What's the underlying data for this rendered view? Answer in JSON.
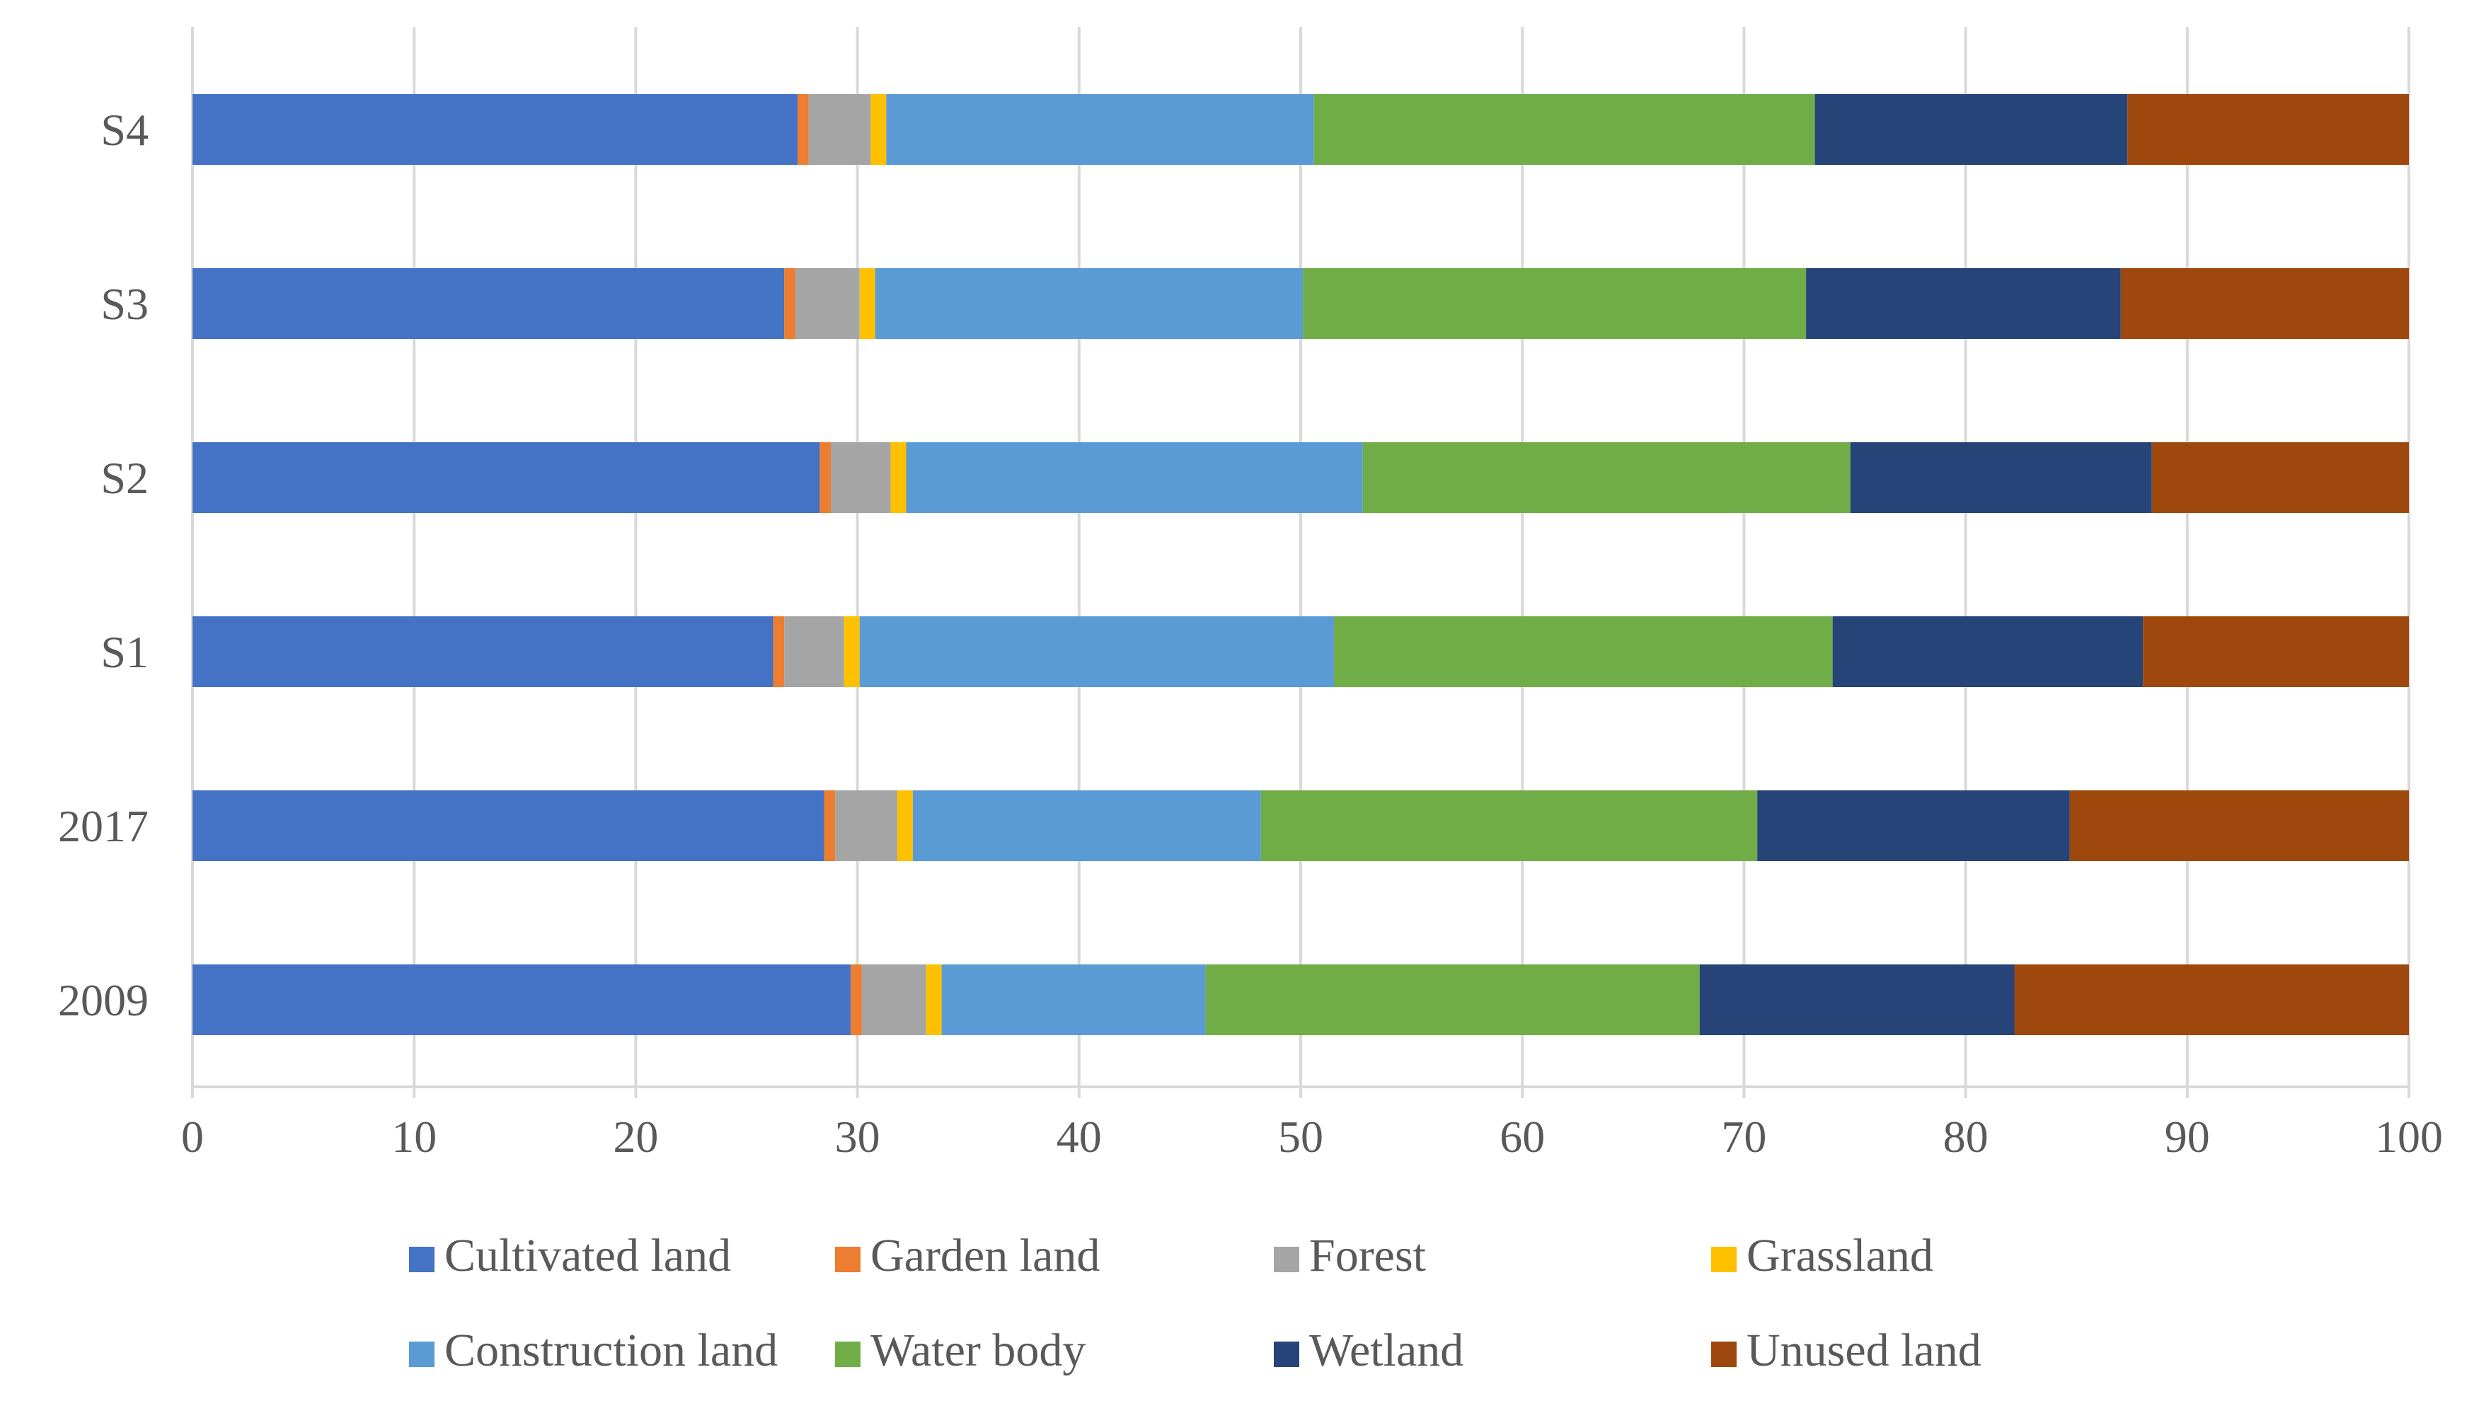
{
  "chart_data": {
    "type": "bar",
    "orientation": "horizontal",
    "stacked": true,
    "title": "",
    "xlabel": "",
    "ylabel": "",
    "xlim": [
      0,
      100
    ],
    "x_ticks": [
      0,
      10,
      20,
      30,
      40,
      50,
      60,
      70,
      80,
      90,
      100
    ],
    "grid": "vertical",
    "legend_position": "bottom",
    "categories": [
      "2009",
      "2017",
      "S1",
      "S2",
      "S3",
      "S4"
    ],
    "series": [
      {
        "name": "Cultivated land",
        "color": "#4472C4",
        "values": [
          29.7,
          28.5,
          26.2,
          28.3,
          26.7,
          27.3
        ]
      },
      {
        "name": "Garden land",
        "color": "#ED7D31",
        "values": [
          0.5,
          0.5,
          0.5,
          0.5,
          0.5,
          0.5
        ]
      },
      {
        "name": "Forest",
        "color": "#A5A5A5",
        "values": [
          2.9,
          2.8,
          2.7,
          2.7,
          2.9,
          2.8
        ]
      },
      {
        "name": "Grassland",
        "color": "#FFC000",
        "values": [
          0.7,
          0.7,
          0.7,
          0.7,
          0.7,
          0.7
        ]
      },
      {
        "name": "Construction land",
        "color": "#5B9BD5",
        "values": [
          11.9,
          15.7,
          21.4,
          20.6,
          19.3,
          19.3
        ]
      },
      {
        "name": "Water body",
        "color": "#70AD47",
        "values": [
          22.3,
          22.4,
          22.5,
          22.0,
          22.7,
          22.6
        ]
      },
      {
        "name": "Wetland",
        "color": "#264478",
        "values": [
          14.2,
          14.1,
          14.0,
          13.6,
          14.2,
          14.1
        ]
      },
      {
        "name": "Unused land",
        "color": "#9E480E",
        "values": [
          17.8,
          15.3,
          12.0,
          11.6,
          13.0,
          12.7
        ]
      }
    ]
  }
}
